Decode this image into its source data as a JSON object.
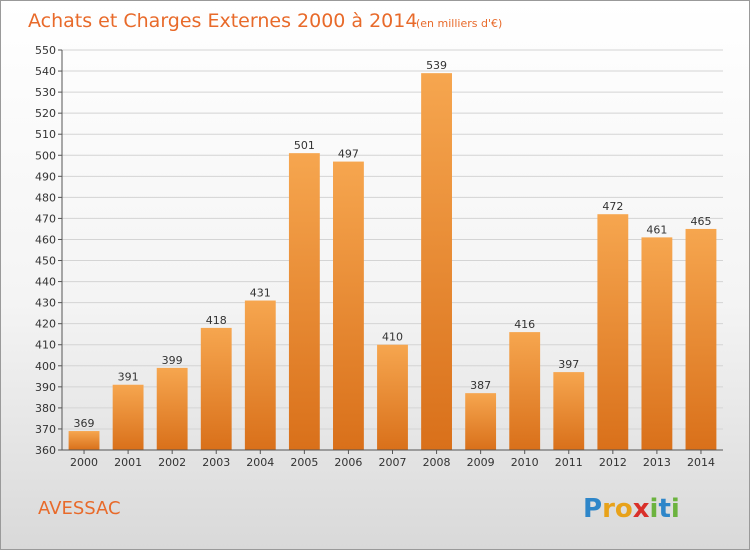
{
  "chart_data": {
    "type": "bar",
    "title": "Achats et Charges Externes 2000 à 2014",
    "subtitle": "(en milliers d'€)",
    "categories": [
      "2000",
      "2001",
      "2002",
      "2003",
      "2004",
      "2005",
      "2006",
      "2007",
      "2008",
      "2009",
      "2010",
      "2011",
      "2012",
      "2013",
      "2014"
    ],
    "values": [
      369,
      391,
      399,
      418,
      431,
      501,
      497,
      410,
      539,
      387,
      416,
      397,
      472,
      461,
      465
    ],
    "ylim": [
      360,
      550
    ],
    "yticks": [
      360,
      370,
      380,
      390,
      400,
      410,
      420,
      430,
      440,
      450,
      460,
      470,
      480,
      490,
      500,
      510,
      520,
      530,
      540,
      550
    ],
    "grid": true,
    "bar_color_top": "#f6a64f",
    "bar_color_bottom": "#d9701a"
  },
  "footer": {
    "commune": "AVESSAC",
    "logo_letters": [
      {
        "char": "P",
        "color": "#2e86c9"
      },
      {
        "char": "r",
        "color": "#e8a21a"
      },
      {
        "char": "o",
        "color": "#e8a21a"
      },
      {
        "char": "x",
        "color": "#d9302a"
      },
      {
        "char": "i",
        "color": "#6cb33f"
      },
      {
        "char": "t",
        "color": "#2e86c9"
      },
      {
        "char": "i",
        "color": "#6cb33f"
      }
    ]
  }
}
